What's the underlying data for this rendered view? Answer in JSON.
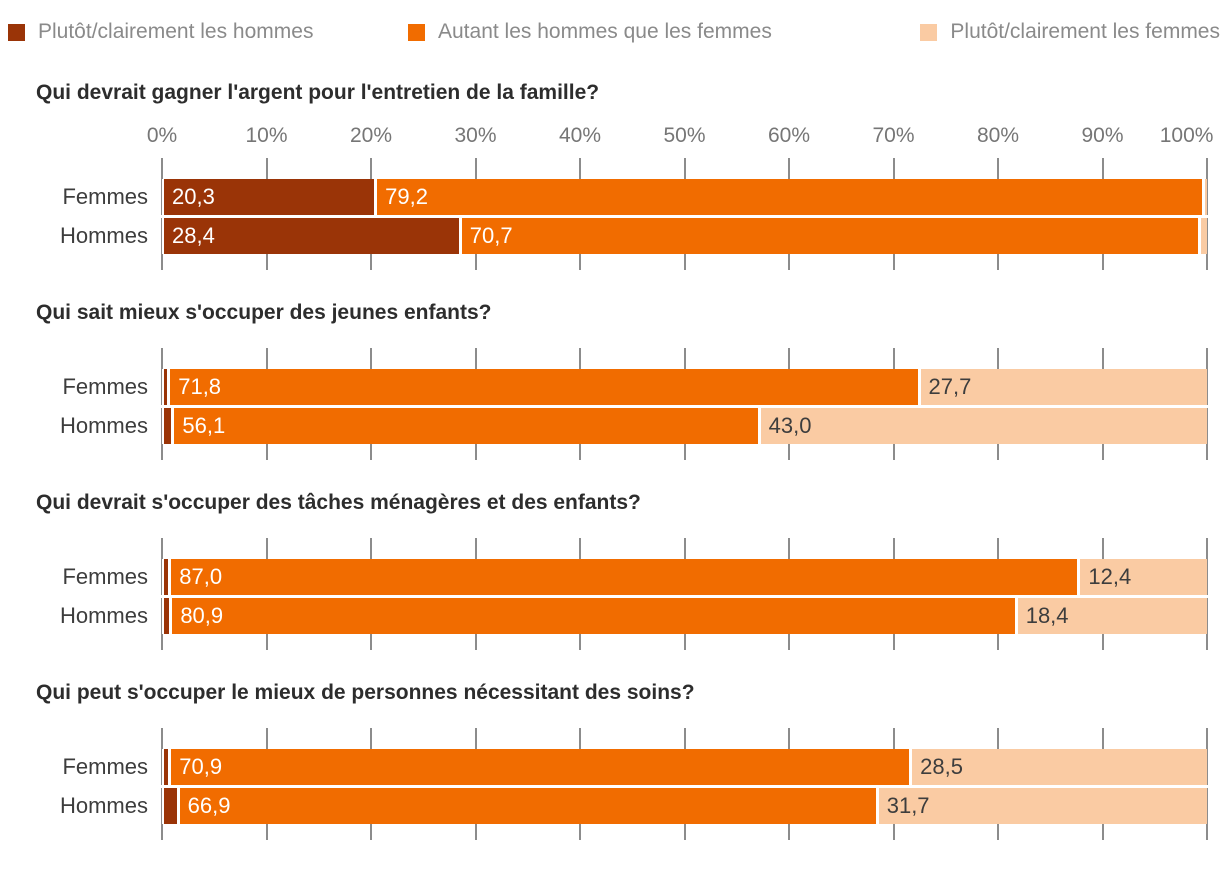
{
  "colors": {
    "hommes": "#9a3407",
    "autant": "#f16c00",
    "femmes": "#facba3",
    "grid": "#8c8c8c",
    "axis_text": "#767676",
    "legend_text": "#8a8a8a",
    "title_text": "#2d2d2d",
    "row_label_text": "#3d3d3d",
    "value_on_dark": "#ffffff",
    "value_on_light": "#3d3d3d"
  },
  "legend": {
    "items": [
      {
        "name": "hommes",
        "label": "Plutôt/clairement les hommes",
        "color": "#9a3407"
      },
      {
        "name": "autant",
        "label": "Autant les hommes que les femmes",
        "color": "#f16c00"
      },
      {
        "name": "femmes",
        "label": "Plutôt/clairement les femmes",
        "color": "#facba3"
      }
    ]
  },
  "axis": {
    "min": 0,
    "max": 100,
    "step": 10,
    "ticks": [
      "0%",
      "10%",
      "20%",
      "30%",
      "40%",
      "50%",
      "60%",
      "70%",
      "80%",
      "90%",
      "100%"
    ]
  },
  "chart_data": [
    {
      "type": "bar",
      "orientation": "horizontal",
      "stacked": true,
      "title": "Qui devrait gagner l'argent pour l'entretien de la famille?",
      "categories": [
        "Femmes",
        "Hommes"
      ],
      "xlim": [
        0,
        100
      ],
      "grid_step": 10,
      "show_axis_labels": true,
      "series": [
        {
          "name": "Plutôt/clairement les hommes",
          "color": "#9a3407",
          "text_color": "#ffffff",
          "values": [
            20.3,
            28.4
          ],
          "labels": [
            "20,3",
            "28,4"
          ]
        },
        {
          "name": "Autant les hommes que les femmes",
          "color": "#f16c00",
          "text_color": "#ffffff",
          "values": [
            79.2,
            70.7
          ],
          "labels": [
            "79,2",
            "70,7"
          ]
        },
        {
          "name": "Plutôt/clairement les femmes",
          "color": "#facba3",
          "text_color": "#3d3d3d",
          "values": [
            0.5,
            0.9
          ],
          "labels": [
            "",
            ""
          ]
        }
      ]
    },
    {
      "type": "bar",
      "orientation": "horizontal",
      "stacked": true,
      "title": "Qui sait mieux s'occuper des jeunes enfants?",
      "categories": [
        "Femmes",
        "Hommes"
      ],
      "xlim": [
        0,
        100
      ],
      "grid_step": 10,
      "show_axis_labels": false,
      "series": [
        {
          "name": "Plutôt/clairement les hommes",
          "color": "#9a3407",
          "text_color": "#ffffff",
          "values": [
            0.5,
            0.9
          ],
          "labels": [
            "",
            ""
          ]
        },
        {
          "name": "Autant les hommes que les femmes",
          "color": "#f16c00",
          "text_color": "#ffffff",
          "values": [
            71.8,
            56.1
          ],
          "labels": [
            "71,8",
            "56,1"
          ]
        },
        {
          "name": "Plutôt/clairement les femmes",
          "color": "#facba3",
          "text_color": "#3d3d3d",
          "values": [
            27.7,
            43.0
          ],
          "labels": [
            "27,7",
            "43,0"
          ]
        }
      ]
    },
    {
      "type": "bar",
      "orientation": "horizontal",
      "stacked": true,
      "title": "Qui devrait s'occuper des tâches ménagères et des enfants?",
      "categories": [
        "Femmes",
        "Hommes"
      ],
      "xlim": [
        0,
        100
      ],
      "grid_step": 10,
      "show_axis_labels": false,
      "series": [
        {
          "name": "Plutôt/clairement les hommes",
          "color": "#9a3407",
          "text_color": "#ffffff",
          "values": [
            0.6,
            0.7
          ],
          "labels": [
            "",
            ""
          ]
        },
        {
          "name": "Autant les hommes que les femmes",
          "color": "#f16c00",
          "text_color": "#ffffff",
          "values": [
            87.0,
            80.9
          ],
          "labels": [
            "87,0",
            "80,9"
          ]
        },
        {
          "name": "Plutôt/clairement les femmes",
          "color": "#facba3",
          "text_color": "#3d3d3d",
          "values": [
            12.4,
            18.4
          ],
          "labels": [
            "12,4",
            "18,4"
          ]
        }
      ]
    },
    {
      "type": "bar",
      "orientation": "horizontal",
      "stacked": true,
      "title": "Qui peut s'occuper le mieux de personnes nécessitant des soins?",
      "categories": [
        "Femmes",
        "Hommes"
      ],
      "xlim": [
        0,
        100
      ],
      "grid_step": 10,
      "show_axis_labels": false,
      "series": [
        {
          "name": "Plutôt/clairement les hommes",
          "color": "#9a3407",
          "text_color": "#ffffff",
          "values": [
            0.6,
            1.4
          ],
          "labels": [
            "",
            ""
          ]
        },
        {
          "name": "Autant les hommes que les femmes",
          "color": "#f16c00",
          "text_color": "#ffffff",
          "values": [
            70.9,
            66.9
          ],
          "labels": [
            "70,9",
            "66,9"
          ]
        },
        {
          "name": "Plutôt/clairement les femmes",
          "color": "#facba3",
          "text_color": "#3d3d3d",
          "values": [
            28.5,
            31.7
          ],
          "labels": [
            "28,5",
            "31,7"
          ]
        }
      ]
    }
  ]
}
